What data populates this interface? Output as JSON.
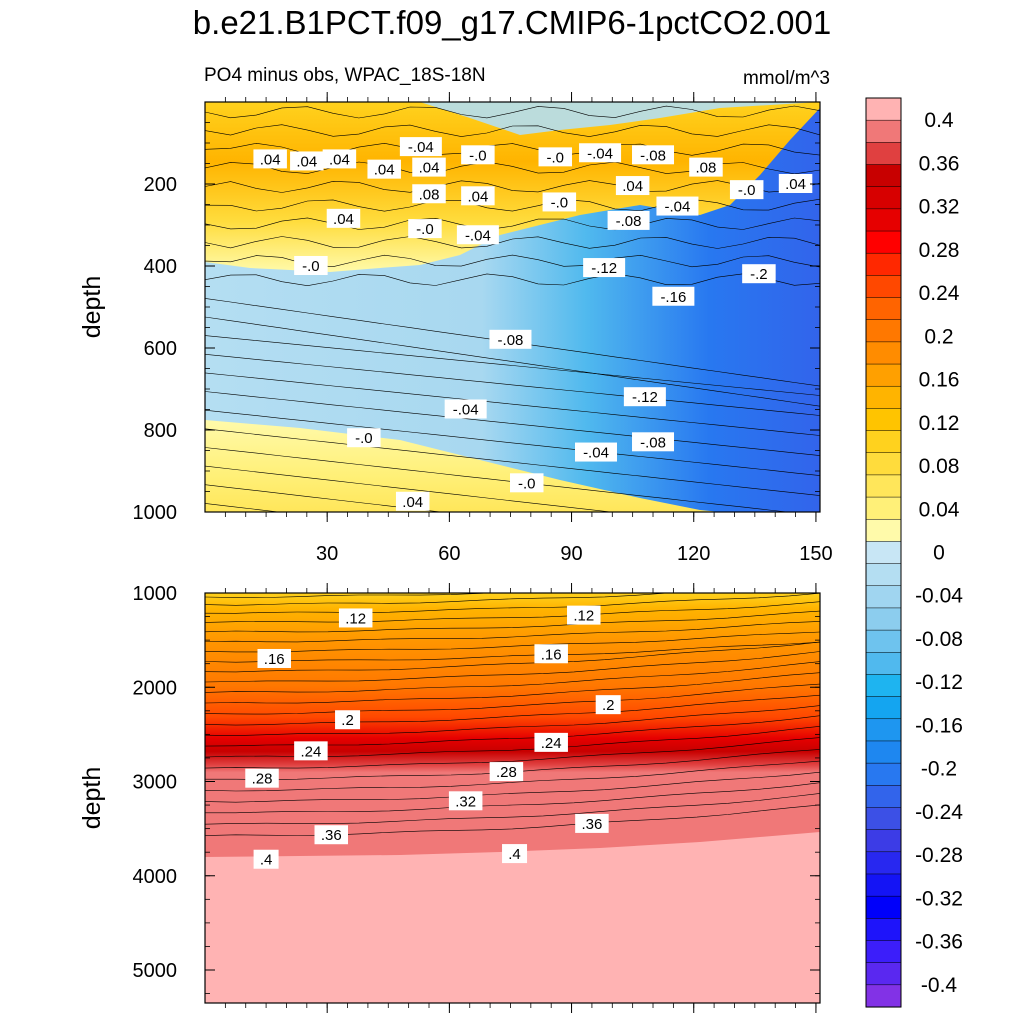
{
  "title": "b.e21.B1PCT.f09_g17.CMIP6-1pctCO2.001",
  "subtitle_left": "PO4 minus obs, WPAC_18S-18N",
  "subtitle_right": "mmol/m^3",
  "chart_data": [
    {
      "type": "heatmap",
      "panel": "upper",
      "ylabel": "depth",
      "xlabel": "",
      "xlim": [
        0,
        151
      ],
      "ylim": [
        1000,
        0
      ],
      "xticks": [
        "30",
        "60",
        "90",
        "120",
        "150"
      ],
      "xtick_values": [
        30,
        60,
        90,
        120,
        150
      ],
      "yticks": [
        "200",
        "400",
        "600",
        "800",
        "1000"
      ],
      "ytick_values": [
        200,
        400,
        600,
        800,
        1000
      ],
      "contour_labels": [
        {
          "text": ".04",
          "x": 16,
          "y": 140
        },
        {
          "text": ".04",
          "x": 25,
          "y": 145
        },
        {
          "text": ".04",
          "x": 33,
          "y": 140
        },
        {
          "text": ".04",
          "x": 44,
          "y": 165
        },
        {
          "text": ".04",
          "x": 55,
          "y": 160
        },
        {
          "text": "-.04",
          "x": 53,
          "y": 110
        },
        {
          "text": "-.0",
          "x": 67,
          "y": 130
        },
        {
          "text": "-.0",
          "x": 86,
          "y": 135
        },
        {
          "text": "-.04",
          "x": 97,
          "y": 125
        },
        {
          "text": "-.08",
          "x": 110,
          "y": 130
        },
        {
          "text": ".08",
          "x": 123,
          "y": 160
        },
        {
          "text": ".04",
          "x": 105,
          "y": 205
        },
        {
          "text": ".04",
          "x": 145,
          "y": 200
        },
        {
          "text": "-.0",
          "x": 133,
          "y": 215
        },
        {
          "text": ".08",
          "x": 55,
          "y": 225
        },
        {
          "text": ".04",
          "x": 67,
          "y": 230
        },
        {
          "text": "-.0",
          "x": 87,
          "y": 245
        },
        {
          "text": "-.04",
          "x": 116,
          "y": 255
        },
        {
          "text": "-.08",
          "x": 104,
          "y": 290
        },
        {
          "text": ".04",
          "x": 34,
          "y": 285
        },
        {
          "text": "-.0",
          "x": 54,
          "y": 310
        },
        {
          "text": "-.04",
          "x": 67,
          "y": 325
        },
        {
          "text": "-.0",
          "x": 26,
          "y": 400
        },
        {
          "text": "-.12",
          "x": 98,
          "y": 405
        },
        {
          "text": "-.16",
          "x": 115,
          "y": 475
        },
        {
          "text": "-.2",
          "x": 136,
          "y": 420
        },
        {
          "text": "-.08",
          "x": 75,
          "y": 580
        },
        {
          "text": "-.12",
          "x": 108,
          "y": 720
        },
        {
          "text": "-.04",
          "x": 64,
          "y": 750
        },
        {
          "text": "-.0",
          "x": 39,
          "y": 820
        },
        {
          "text": "-.04",
          "x": 96,
          "y": 855
        },
        {
          "text": "-.08",
          "x": 110,
          "y": 830
        },
        {
          "text": "-.0",
          "x": 79,
          "y": 930
        },
        {
          "text": ".04",
          "x": 51,
          "y": 975
        }
      ]
    },
    {
      "type": "heatmap",
      "panel": "lower",
      "ylabel": "depth",
      "xlabel": "",
      "xlim": [
        0,
        151
      ],
      "ylim": [
        5350,
        1000
      ],
      "yticks": [
        "1000",
        "2000",
        "3000",
        "4000",
        "5000"
      ],
      "ytick_values": [
        1000,
        2000,
        3000,
        4000,
        5000
      ],
      "contour_labels": [
        {
          "text": ".12",
          "x": 37,
          "y": 1270
        },
        {
          "text": ".12",
          "x": 93,
          "y": 1240
        },
        {
          "text": ".16",
          "x": 17,
          "y": 1700
        },
        {
          "text": ".16",
          "x": 85,
          "y": 1650
        },
        {
          "text": ".2",
          "x": 35,
          "y": 2350
        },
        {
          "text": ".2",
          "x": 99,
          "y": 2190
        },
        {
          "text": ".24",
          "x": 26,
          "y": 2680
        },
        {
          "text": ".24",
          "x": 85,
          "y": 2590
        },
        {
          "text": ".28",
          "x": 14,
          "y": 2970
        },
        {
          "text": ".28",
          "x": 74,
          "y": 2900
        },
        {
          "text": ".32",
          "x": 64,
          "y": 3210
        },
        {
          "text": ".36",
          "x": 31,
          "y": 3570
        },
        {
          "text": ".36",
          "x": 95,
          "y": 3450
        },
        {
          "text": ".4",
          "x": 15,
          "y": 3830
        },
        {
          "text": ".4",
          "x": 76,
          "y": 3770
        }
      ]
    }
  ],
  "colorbar": {
    "labels": [
      "0.4",
      "0.36",
      "0.32",
      "0.28",
      "0.24",
      "0.2",
      "0.16",
      "0.12",
      "0.08",
      "0.04",
      "0",
      "-0.04",
      "-0.08",
      "-0.12",
      "-0.16",
      "-0.2",
      "-0.24",
      "-0.28",
      "-0.32",
      "-0.36",
      "-0.4"
    ],
    "label_values": [
      0.4,
      0.36,
      0.32,
      0.28,
      0.24,
      0.2,
      0.16,
      0.12,
      0.08,
      0.04,
      0,
      -0.04,
      -0.08,
      -0.12,
      -0.16,
      -0.2,
      -0.24,
      -0.28,
      -0.32,
      -0.36,
      -0.4
    ],
    "colors": [
      "#ffb3b3",
      "#f07878",
      "#e04040",
      "#c80000",
      "#d70000",
      "#e60000",
      "#ff0000",
      "#ff2800",
      "#ff4800",
      "#ff6400",
      "#ff7800",
      "#ff8c00",
      "#ffa000",
      "#ffb400",
      "#ffc400",
      "#ffd21e",
      "#ffdc3c",
      "#ffe65a",
      "#fff078",
      "#fffaaa",
      "#c8e6f5",
      "#b4def2",
      "#a0d5f0",
      "#8ccdee",
      "#6ec3ee",
      "#50b9ee",
      "#1eb4f0",
      "#14a5f0",
      "#1e96f0",
      "#1e87f0",
      "#2878f0",
      "#3264eb",
      "#3c50e6",
      "#3c3ce6",
      "#2828f0",
      "#1414f5",
      "#0000fa",
      "#1e14fa",
      "#3c1efa",
      "#5a28f0",
      "#8232e6"
    ]
  }
}
